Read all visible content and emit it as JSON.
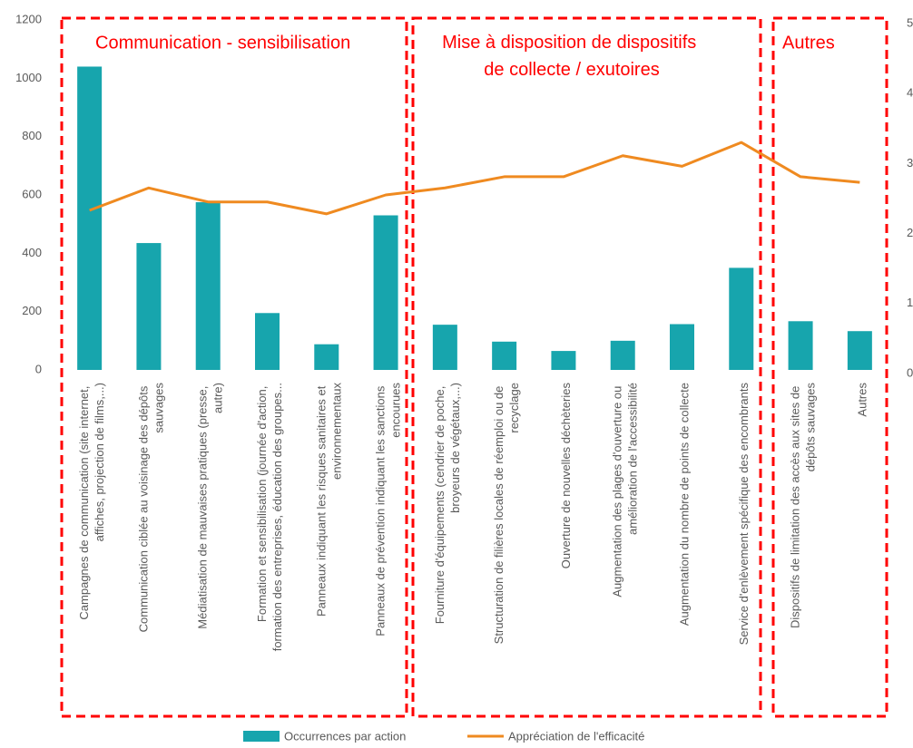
{
  "chart_data": {
    "type": "bar_line",
    "categories": [
      "Campagnes de communication (site internet,\naffiches, projection de films,...)",
      "Communication ciblée au voisinage des dépôts\nsauvages",
      "Médiatisation de mauvaises pratiques (presse,\nautre)",
      "Formation et sensibilisation (journée d'action,\nformation des entreprises, éducation des groupes...",
      "Panneaux indiquant les risques sanitaires et\nenvironnementaux",
      "Panneaux de prévention indiquant les sanctions\nencourues",
      "Fourniture d'équipements (cendrier de poche,\nbroyeurs de végétaux,...)",
      "Structuration de filières locales de réemploi ou de\nrecyclage",
      "Ouverture de nouvelles déchèteries",
      "Augmentation des plages d'ouverture ou\namélioration de l'accessibilité",
      "Augmentation du nombre de points de collecte",
      "Service d'enlèvement spécifique des encombrants",
      "Dispositifs de limitation des accès aux sites de\ndépôts sauvages",
      "Autres"
    ],
    "series": [
      {
        "name": "Occurrences par action",
        "type": "bar",
        "color": "#17a5ad",
        "values": [
          1040,
          435,
          575,
          195,
          88,
          530,
          155,
          97,
          65,
          100,
          157,
          350,
          167,
          133
        ]
      },
      {
        "name": "Appréciation de l'efficacité",
        "type": "line",
        "color": "#ef8a20",
        "axis": "y2",
        "values": [
          2.28,
          2.6,
          2.4,
          2.4,
          2.23,
          2.5,
          2.6,
          2.76,
          2.76,
          3.06,
          2.91,
          3.25,
          2.76,
          2.68
        ]
      }
    ],
    "ylim": [
      0,
      1200
    ],
    "yticks": [
      0,
      200,
      400,
      600,
      800,
      1000,
      1200
    ],
    "y2lim": [
      0,
      5
    ],
    "y2ticks": [
      0,
      1,
      2,
      3,
      4,
      5
    ],
    "annotations": [
      "Communication - sensibilisation",
      "Mise à disposition de dispositifs\nde collecte / exutoires",
      "Autres"
    ]
  }
}
